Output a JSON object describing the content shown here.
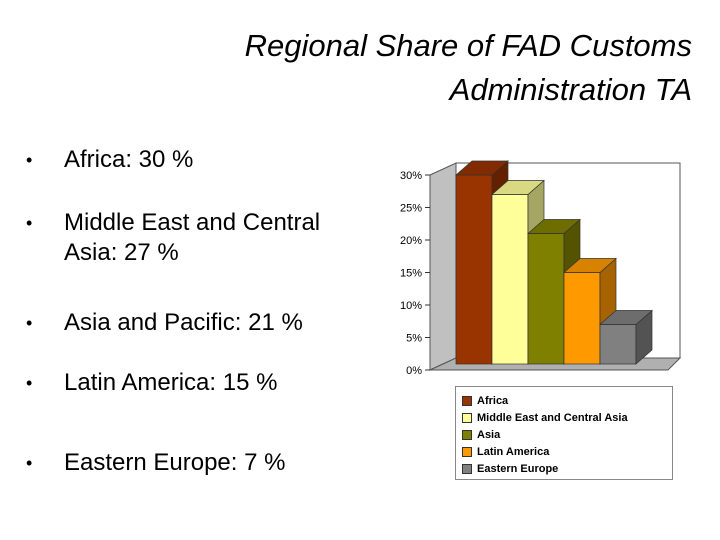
{
  "slide": {
    "title_lines": [
      "Regional Share of FAD Customs",
      "Administration TA"
    ],
    "bullets": [
      {
        "lines": [
          "Africa: 30 %"
        ]
      },
      {
        "lines": [
          "Middle East and Central",
          "Asia: 27 %"
        ]
      },
      {
        "lines": [
          "Asia and Pacific: 21 %"
        ]
      },
      {
        "lines": [
          "Latin America: 15 %"
        ]
      },
      {
        "lines": [
          "Eastern Europe: 7 %"
        ]
      }
    ]
  },
  "chart_data": {
    "type": "bar",
    "title": "",
    "xlabel": "",
    "ylabel": "",
    "ylim": [
      0,
      30
    ],
    "yticks": [
      "0%",
      "5%",
      "10%",
      "15%",
      "20%",
      "25%",
      "30%"
    ],
    "legend_position": "bottom",
    "grid": false,
    "three_d": true,
    "series": [
      {
        "name": "Africa",
        "value": 30,
        "color": "#993300"
      },
      {
        "name": "Middle East and Central Asia",
        "value": 27,
        "color": "#FFFF99"
      },
      {
        "name": "Asia",
        "value": 21,
        "color": "#808000"
      },
      {
        "name": "Latin America",
        "value": 15,
        "color": "#FF9900"
      },
      {
        "name": "Eastern Europe",
        "value": 7,
        "color": "#808080"
      }
    ]
  }
}
